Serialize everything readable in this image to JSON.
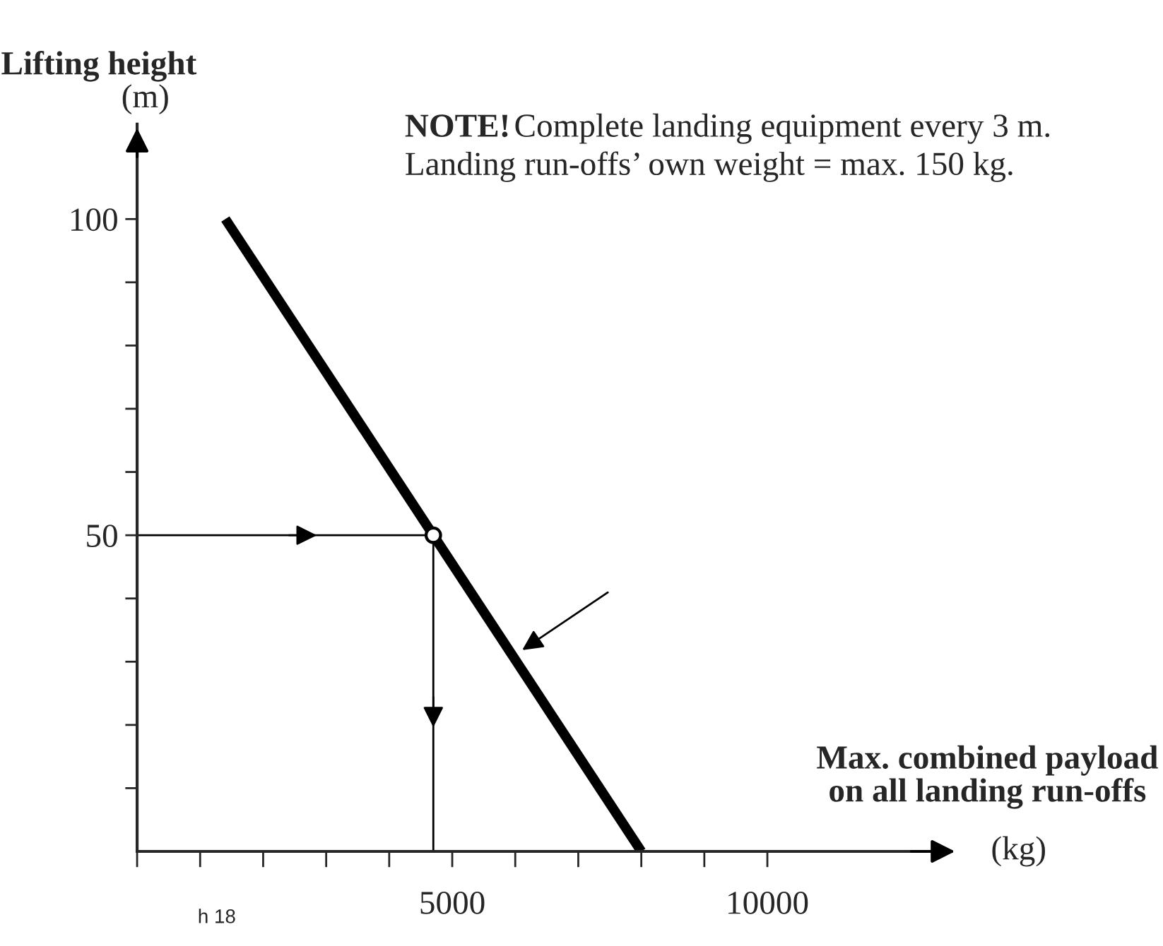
{
  "chart_data": {
    "type": "line",
    "xlabel": "Max. combined payload\non all landing run-offs\n(kg)",
    "ylabel": "Lifting height\n(m)",
    "annotations": [
      "NOTE!",
      "Complete landing equipment every 3 m.\nLanding run-offs’ own weight = max. 150 kg.",
      "h 18"
    ],
    "series": [
      {
        "color": "#000000",
        "x": [
          1400,
          8000
        ],
        "values": [
          100,
          0
        ]
      },
      {
        "color": "#000000",
        "x": [
          0,
          4700,
          4700
        ],
        "values": [
          50,
          50,
          0
        ]
      },
      {
        "type": "scatter",
        "color": "#000000",
        "marker": "circle",
        "x": [
          4700
        ],
        "values": [
          50
        ]
      }
    ],
    "xlim": [
      0,
      12600
    ],
    "ylim": [
      0,
      115
    ],
    "xticks": [
      {
        "value": 0,
        "label": null
      },
      {
        "value": 1000,
        "label": null
      },
      {
        "value": 2000,
        "label": null
      },
      {
        "value": 3000,
        "label": null
      },
      {
        "value": 4000,
        "label": null
      },
      5000,
      {
        "value": 6000,
        "label": null
      },
      {
        "value": 7000,
        "label": null
      },
      {
        "value": 8000,
        "label": null
      },
      {
        "value": 9000,
        "label": null
      },
      10000
    ],
    "yticks": [
      {
        "value": 10,
        "label": null
      },
      {
        "value": 20,
        "label": null
      },
      {
        "value": 30,
        "label": null
      },
      {
        "value": 40,
        "label": null
      },
      50,
      {
        "value": 60,
        "label": null
      },
      {
        "value": 70,
        "label": null
      },
      {
        "value": 80,
        "label": null
      },
      {
        "value": 90,
        "label": null
      },
      100
    ],
    "grid": false,
    "legend": false
  }
}
